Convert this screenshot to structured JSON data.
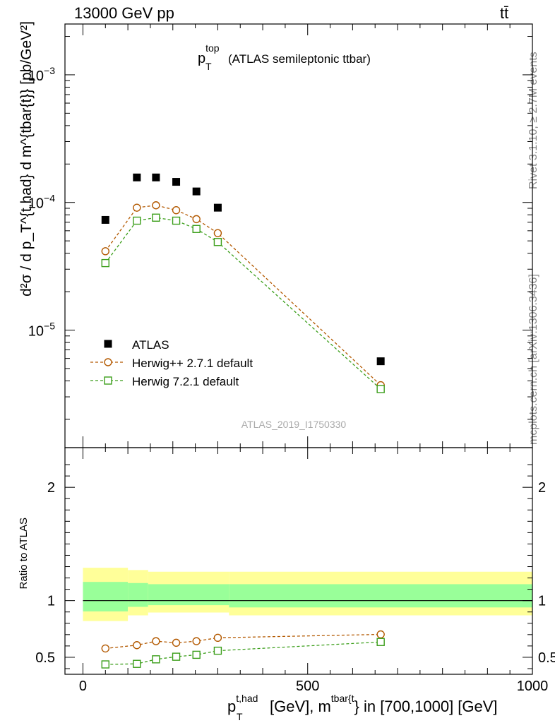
{
  "header": {
    "left": "13000 GeV pp",
    "right": "tt̄"
  },
  "side_labels": {
    "rivet": "Rivet 3.1.10, ≥ 2.7M events",
    "mcplots": "mcplots.cern.ch [arXiv:1306.3436]"
  },
  "watermark": "ATLAS_2019_I1750330",
  "colors": {
    "data": "#000000",
    "herwigpp": "#b35900",
    "herwig7": "#3b9e1a",
    "band_inner": "#99ff99",
    "band_outer": "#ffff99"
  },
  "chart_data": [
    {
      "type": "scatter",
      "title": {
        "main": "p",
        "sub": "T",
        "sup": "top",
        "rest": "(ATLAS semileptonic ttbar)"
      },
      "ylabel": "d²σ / d p_T^{t,had} d m^{tbar{t}} [pb/GeV²]",
      "y_scale": "log",
      "ylim": [
        1.2e-06,
        0.0025
      ],
      "xlim": [
        -40,
        1000
      ],
      "y_ticks": [
        {
          "value": 1e-05,
          "base": "10",
          "exp": "−5"
        },
        {
          "value": 0.0001,
          "base": "10",
          "exp": "−4"
        },
        {
          "value": 0.001,
          "base": "10",
          "exp": "−3"
        }
      ],
      "legend_position": "lower-left",
      "series": [
        {
          "name": "ATLAS",
          "marker": "filled-square",
          "x": [
            50,
            120,
            162.5,
            207.5,
            252.5,
            300,
            662.5
          ],
          "y": [
            7.3e-05,
            0.000157,
            0.000157,
            0.000145,
            0.000122,
            9.1e-05,
            5.7e-06
          ]
        },
        {
          "name": "Herwig++ 2.7.1 default",
          "marker": "open-circle",
          "x": [
            50,
            120,
            162.5,
            207.5,
            252.5,
            300,
            662.5
          ],
          "y": [
            4.15e-05,
            9.1e-05,
            9.5e-05,
            8.7e-05,
            7.4e-05,
            5.75e-05,
            3.7e-06
          ]
        },
        {
          "name": "Herwig 7.2.1 default",
          "marker": "open-square",
          "x": [
            50,
            120,
            162.5,
            207.5,
            252.5,
            300,
            662.5
          ],
          "y": [
            3.35e-05,
            7.2e-05,
            7.6e-05,
            7.2e-05,
            6.2e-05,
            4.9e-05,
            3.45e-06
          ]
        }
      ]
    },
    {
      "type": "scatter",
      "ylabel": "Ratio to ATLAS",
      "ylim": [
        0.35,
        2.35
      ],
      "xlim": [
        -40,
        1000
      ],
      "y_ticks": [
        "0.5",
        "1",
        "2"
      ],
      "y_tick_values": [
        0.5,
        1,
        2
      ],
      "x_ticks": [
        "0",
        "500",
        "1000"
      ],
      "x_tick_values": [
        0,
        500,
        1000
      ],
      "xlabel": {
        "p": "p",
        "p_sub": "T",
        "p_sup": "t,had",
        "mid": "[GeV], m",
        "m_sup": "tbar{t",
        "end": "} in [700,1000] [GeV]"
      },
      "bands": [
        {
          "x": [
            0,
            100
          ],
          "inner": [
            0.905,
            1.165
          ],
          "outer": [
            0.82,
            1.29
          ]
        },
        {
          "x": [
            100,
            145
          ],
          "inner": [
            0.945,
            1.155
          ],
          "outer": [
            0.87,
            1.27
          ]
        },
        {
          "x": [
            145,
            325
          ],
          "inner": [
            0.96,
            1.145
          ],
          "outer": [
            0.895,
            1.255
          ]
        },
        {
          "x": [
            325,
            1000
          ],
          "inner": [
            0.94,
            1.145
          ],
          "outer": [
            0.87,
            1.255
          ]
        }
      ],
      "series": [
        {
          "name": "Herwig++ 2.7.1 default",
          "x": [
            50,
            120,
            162.5,
            207.5,
            252.5,
            300,
            662.5
          ],
          "y": [
            0.578,
            0.607,
            0.642,
            0.628,
            0.642,
            0.672,
            0.702
          ]
        },
        {
          "name": "Herwig 7.2.1 default",
          "x": [
            50,
            120,
            162.5,
            207.5,
            252.5,
            300,
            662.5
          ],
          "y": [
            0.437,
            0.442,
            0.482,
            0.505,
            0.522,
            0.558,
            0.635
          ]
        }
      ]
    }
  ]
}
